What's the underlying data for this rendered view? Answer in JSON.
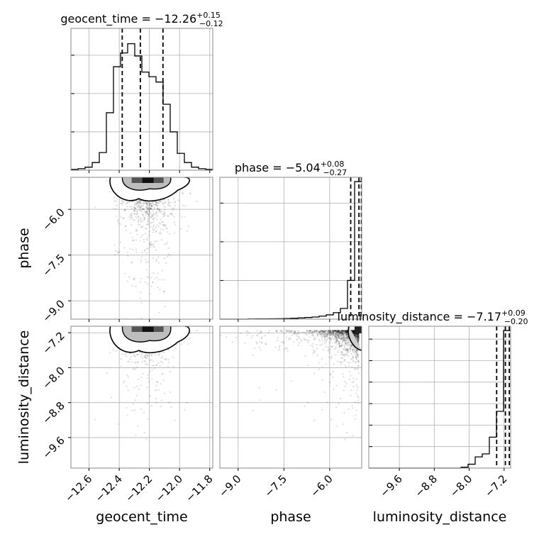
{
  "chart_data": {
    "type": "corner",
    "parameters": [
      "geocent_time",
      "phase",
      "luminosity_distance"
    ],
    "titles": [
      {
        "parameter": "geocent_time",
        "prefix": "geocent_time = ",
        "median": "−12.26",
        "plus": "+0.15",
        "minus": "−0.12"
      },
      {
        "parameter": "phase",
        "prefix": "phase = ",
        "median": "−5.04",
        "plus": "+0.08",
        "minus": "−0.27"
      },
      {
        "parameter": "luminosity_distance",
        "prefix": "luminosity_distance = ",
        "median": "−7.17",
        "plus": "+0.09",
        "minus": "−0.20"
      }
    ],
    "ranges": {
      "geocent_time": [
        -12.72,
        -11.78
      ],
      "phase": [
        -9.6,
        -4.95
      ],
      "luminosity_distance": [
        -10.3,
        -7.05
      ]
    },
    "ticks": {
      "geocent_time": [
        -12.6,
        -12.4,
        -12.2,
        -12.0,
        -11.8
      ],
      "phase": [
        -9.0,
        -7.5,
        -6.0
      ],
      "luminosity_distance": [
        -9.6,
        -8.8,
        -8.0,
        -7.2
      ]
    },
    "tick_labels": {
      "geocent_time": [
        "−12.6",
        "−12.4",
        "−12.2",
        "−12.0",
        "−11.8"
      ],
      "phase": [
        "−9.0",
        "−7.5",
        "−6.0"
      ],
      "luminosity_distance": [
        "−9.6",
        "−8.8",
        "−8.0",
        "−7.2"
      ]
    },
    "quantiles": {
      "geocent_time": [
        -12.38,
        -12.26,
        -12.11
      ],
      "phase": [
        -5.31,
        -5.04,
        -4.96
      ],
      "luminosity_distance": [
        -7.37,
        -7.17,
        -7.08
      ]
    },
    "histograms": {
      "geocent_time": {
        "edges": [
          -12.72,
          -12.673,
          -12.626,
          -12.579,
          -12.532,
          -12.485,
          -12.438,
          -12.391,
          -12.344,
          -12.297,
          -12.25,
          -12.203,
          -12.156,
          -12.109,
          -12.062,
          -12.015,
          -11.968,
          -11.921,
          -11.874,
          -11.827,
          -11.78
        ],
        "counts": [
          0.01,
          0.02,
          0.04,
          0.1,
          0.23,
          0.75,
          1.35,
          1.53,
          1.65,
          1.49,
          1.28,
          1.22,
          1.15,
          0.86,
          0.5,
          0.22,
          0.1,
          0.04,
          0.02,
          0.01
        ]
      },
      "phase": {
        "edges": [
          -9.6,
          -9.3675,
          -9.135,
          -8.9025,
          -8.67,
          -8.4375,
          -8.205,
          -7.9725,
          -7.74,
          -7.5075,
          -7.275,
          -7.0425,
          -6.81,
          -6.5775,
          -6.345,
          -6.1125,
          -5.88,
          -5.6475,
          -5.415,
          -5.1825,
          -4.95
        ],
        "counts": [
          0.0,
          0.0,
          0.0,
          0.0,
          0.003,
          0.005,
          0.006,
          0.008,
          0.01,
          0.014,
          0.02,
          0.028,
          0.038,
          0.05,
          0.07,
          0.1,
          0.15,
          0.25,
          0.9,
          3.2
        ]
      },
      "luminosity_distance": {
        "edges": [
          -10.3,
          -10.1375,
          -9.975,
          -9.8125,
          -9.65,
          -9.4875,
          -9.325,
          -9.1625,
          -9.0,
          -8.8375,
          -8.675,
          -8.5125,
          -8.35,
          -8.1875,
          -8.025,
          -7.8625,
          -7.7,
          -7.5375,
          -7.375,
          -7.2125,
          -7.05
        ],
        "counts": [
          0.0,
          0.0,
          0.0,
          0.0,
          0.0,
          0.0,
          0.0,
          0.0,
          0.0,
          0.0,
          0.0,
          0.0,
          0.0,
          0.02,
          0.09,
          0.26,
          0.33,
          0.72,
          1.32,
          3.2
        ]
      }
    },
    "hist_ylim": {
      "geocent_time": [
        0,
        1.85
      ],
      "phase": [
        0,
        3.3
      ],
      "luminosity_distance": [
        0,
        3.3
      ]
    },
    "hist_yticks": {
      "geocent_time": [
        0,
        0.5,
        1.0,
        1.5
      ],
      "phase": [
        0,
        0.9,
        1.8,
        2.7
      ],
      "luminosity_distance": [
        0,
        0.5,
        1.0,
        1.5,
        2.0,
        2.5,
        3.0
      ]
    },
    "grid": true
  }
}
